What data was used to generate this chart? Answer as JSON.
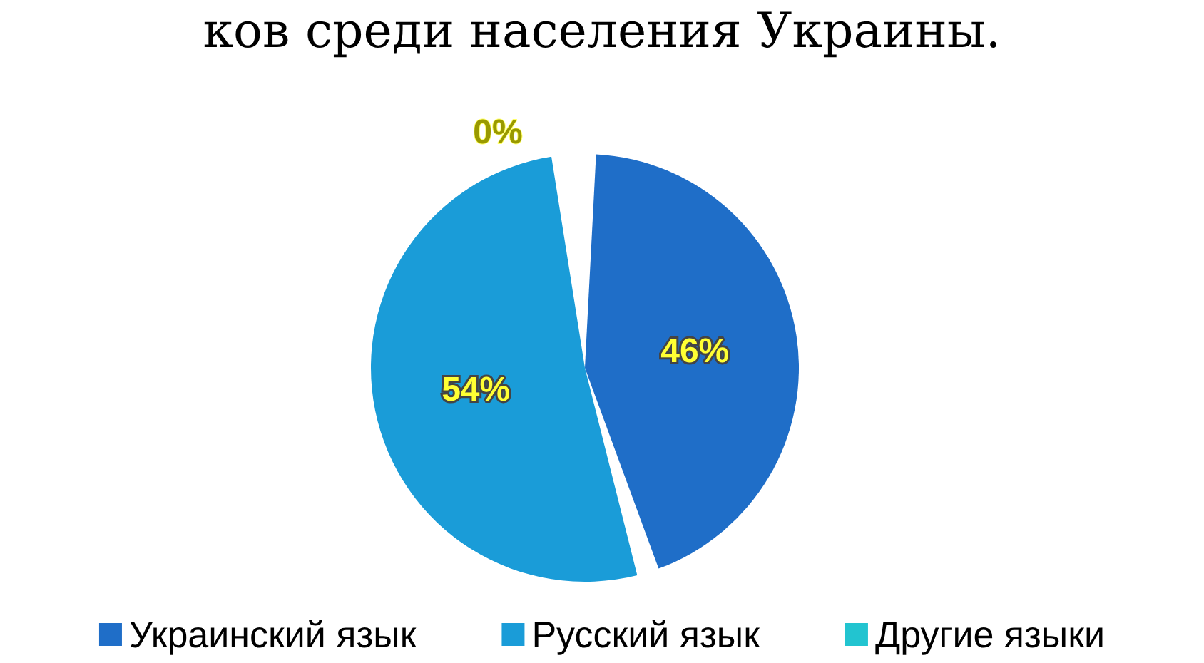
{
  "chart_data": {
    "type": "pie",
    "title": "ков среди населения Украины.",
    "categories": [
      "Украинский язык",
      "Русский язык",
      "Другие языки"
    ],
    "values": [
      46,
      54,
      0
    ],
    "colors": [
      "#1f6ec8",
      "#1a9cd8",
      "#22c4d0"
    ],
    "value_labels": [
      "46%",
      "54%",
      "0%"
    ],
    "legend": "bottom"
  }
}
